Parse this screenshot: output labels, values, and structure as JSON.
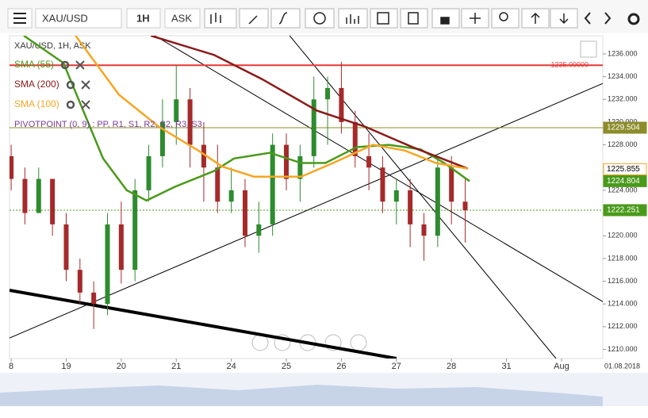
{
  "toolbar": {
    "symbol": "XAU/USD",
    "timeframe": "1H",
    "side": "ASK"
  },
  "chart_data": {
    "type": "candlestick",
    "title": "XAU/USD, 1H, ASK",
    "x": [
      0,
      0.25,
      0.5,
      0.75,
      1,
      1.25,
      1.5,
      1.75,
      2,
      2.25,
      2.5,
      2.75,
      3,
      3.25,
      3.5,
      3.75,
      4,
      4.25,
      4.5,
      4.75,
      5,
      5.25,
      5.5,
      5.75,
      6,
      6.25,
      6.5,
      6.75,
      7,
      7.25,
      7.5,
      7.75,
      8,
      8.25
    ],
    "open": [
      1227,
      1225,
      1222,
      1225,
      1221,
      1217,
      1215,
      1214,
      1221,
      1217,
      1224,
      1227,
      1230,
      1232,
      1228,
      1226,
      1223,
      1224,
      1220,
      1221,
      1228,
      1225,
      1227,
      1232,
      1233,
      1230,
      1227,
      1226,
      1223,
      1224,
      1221,
      1220,
      1226,
      1223
    ],
    "high": [
      1228,
      1226,
      1226,
      1225,
      1222,
      1218,
      1216,
      1222,
      1223,
      1225,
      1228,
      1232,
      1235,
      1233,
      1230,
      1228,
      1226,
      1225,
      1223,
      1229,
      1229,
      1228,
      1234,
      1234,
      1235.3,
      1231,
      1229,
      1227,
      1225,
      1225,
      1222,
      1227,
      1227,
      1225
    ],
    "low": [
      1224,
      1221,
      1222,
      1220,
      1216,
      1214,
      1211.8,
      1213,
      1215.8,
      1216,
      1223,
      1226,
      1228,
      1226,
      1223,
      1222,
      1222,
      1219,
      1218.5,
      1220,
      1224,
      1223,
      1226,
      1228,
      1229,
      1226,
      1224,
      1222,
      1221,
      1219,
      1217.8,
      1219,
      1221,
      1219.4
    ],
    "close": [
      1225,
      1222,
      1225,
      1221,
      1217,
      1215,
      1214,
      1221,
      1217,
      1224,
      1227,
      1230,
      1232,
      1228,
      1226,
      1223,
      1224,
      1220,
      1221,
      1228,
      1225,
      1227,
      1232,
      1233,
      1230,
      1227,
      1226,
      1223,
      1224,
      1221,
      1220,
      1226,
      1223,
      1222.251
    ],
    "up_color": "#2e8b2e",
    "down_color": "#a52a2a",
    "series": [
      {
        "name": "SMA (55)",
        "color": "#4a9a1a",
        "x": [
          0.23,
          0.95,
          1.67,
          2.1,
          2.46,
          2.97,
          3.69,
          4.05,
          4.7,
          5.27,
          5.71,
          6.28,
          6.86,
          7.44,
          7.87,
          8.33
        ],
        "values": [
          1237.6,
          1235.2,
          1226.8,
          1224,
          1223.1,
          1224.3,
          1225.7,
          1226.8,
          1227.3,
          1226.4,
          1226.4,
          1227.8,
          1228,
          1227.6,
          1226.4,
          1224.8
        ]
      },
      {
        "name": "SMA (200)",
        "color": "#8b1a1a",
        "x": [
          2.54,
          3.69,
          4.55,
          5.56,
          6.43,
          7.29,
          8.3
        ],
        "values": [
          1237.6,
          1235.9,
          1233.8,
          1231,
          1229.6,
          1227.8,
          1225.9
        ]
      },
      {
        "name": "SMA (100)",
        "color": "#f5a623",
        "x": [
          1.17,
          1.96,
          2.68,
          3.4,
          3.83,
          4.41,
          5.27,
          5.85,
          6.57,
          7.15,
          7.72,
          8.3
        ],
        "values": [
          1237.6,
          1232.4,
          1229.6,
          1227.5,
          1226.1,
          1225.2,
          1225.2,
          1226.4,
          1228,
          1227.5,
          1226.4,
          1225.9
        ]
      }
    ],
    "indicator": "PIVOTPOINT (0, 9) : PP, R1, S1, R2, S2, R3, S3",
    "pivot": {
      "value": 1229.504,
      "color": "#8c8c2a"
    },
    "alert": {
      "value": 1235,
      "label": "1235.00000",
      "color": "#e53935"
    },
    "price_tags": [
      {
        "value": 1225.855,
        "color": "#f5a623"
      },
      {
        "value": 1224.804,
        "color": "#4a9a1a"
      }
    ],
    "last": {
      "value": 1222.251,
      "color": "#4a9a1a"
    },
    "trendlines": [
      {
        "x": [
          2.61,
          10.75
        ],
        "y": [
          1237.6,
          1214.2
        ],
        "width": 1
      },
      {
        "x": [
          5.06,
          9.9
        ],
        "y": [
          1237.6,
          1209.2
        ],
        "width": 1
      },
      {
        "x": [
          -0.03,
          10.75
        ],
        "y": [
          1211,
          1233.4
        ],
        "width": 1
      },
      {
        "x": [
          -0.03,
          7
        ],
        "y": [
          1215.2,
          1209.2
        ],
        "width": 4
      }
    ],
    "xlim": [
      -0.03,
      10.75
    ],
    "xticks": [
      {
        "value": 0,
        "label": "8"
      },
      {
        "value": 1,
        "label": "19"
      },
      {
        "value": 2,
        "label": "20"
      },
      {
        "value": 3,
        "label": "21"
      },
      {
        "value": 4,
        "label": "24"
      },
      {
        "value": 5,
        "label": "25"
      },
      {
        "value": 6,
        "label": "26"
      },
      {
        "value": 7,
        "label": "27"
      },
      {
        "value": 8,
        "label": "28"
      },
      {
        "value": 9,
        "label": "31"
      },
      {
        "value": 10,
        "label": "Aug"
      }
    ],
    "ylim": [
      1209.2,
      1237.6
    ],
    "yticks": [
      {
        "value": 1210,
        "label": "1210.000"
      },
      {
        "value": 1212,
        "label": "1212.000"
      },
      {
        "value": 1214,
        "label": "1214.000"
      },
      {
        "value": 1216,
        "label": "1216.000"
      },
      {
        "value": 1218,
        "label": "1218.000"
      },
      {
        "value": 1220,
        "label": "1220.000"
      },
      {
        "value": 1222,
        "label": "1222.000"
      },
      {
        "value": 1224,
        "label": "1224.000"
      },
      {
        "value": 1226,
        "label": "1226.000"
      },
      {
        "value": 1228,
        "label": "1228.000"
      },
      {
        "value": 1230,
        "label": "1230.000"
      },
      {
        "value": 1232,
        "label": "1232.000"
      },
      {
        "value": 1234,
        "label": "1234.000"
      },
      {
        "value": 1236,
        "label": "1236.000"
      }
    ],
    "date": "01.08.2018"
  }
}
